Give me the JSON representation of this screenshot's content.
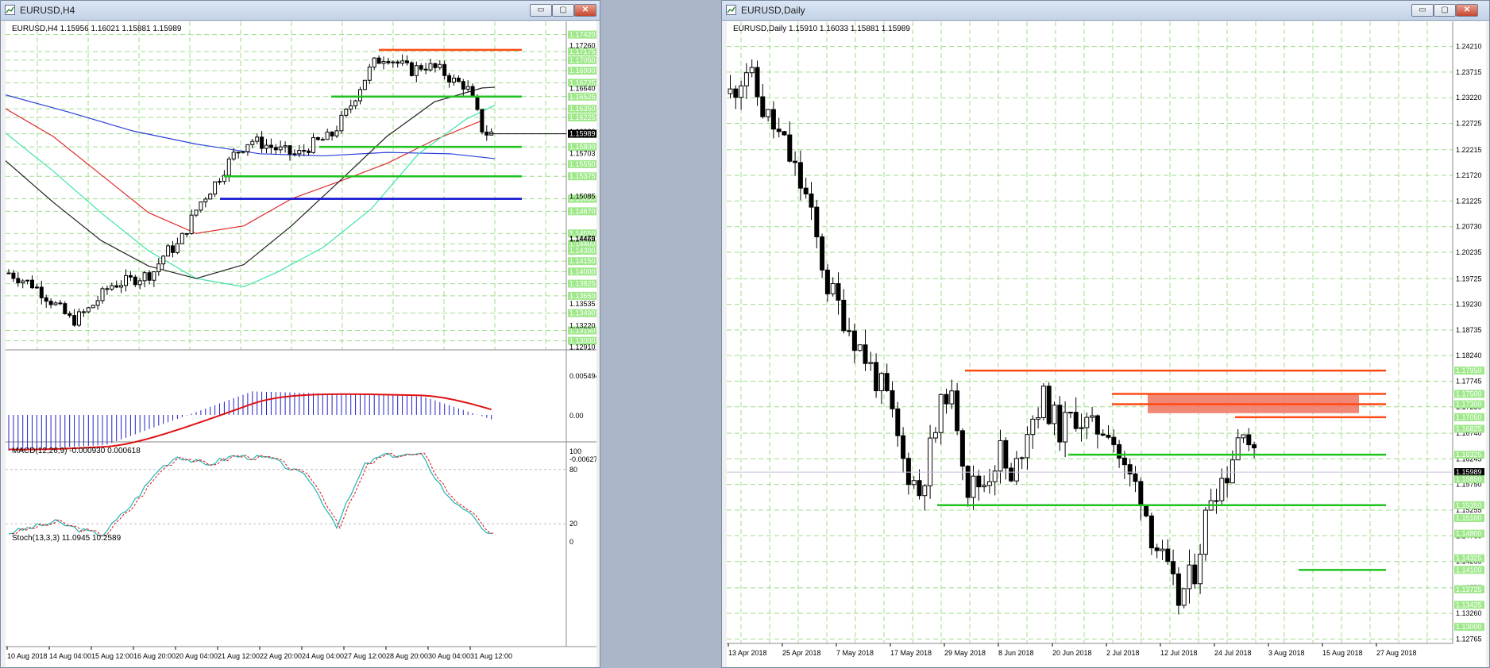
{
  "left_window": {
    "title": "EURUSD,H4",
    "controls": {
      "minimize": "▭",
      "maximize": "▢",
      "close": "✕"
    },
    "info": "EURUSD,H4  1.15956 1.16021 1.15881 1.15989",
    "price_labels": [
      "1.17260",
      "1.16640",
      "1.16020",
      "1.15703",
      "1.15085",
      "1.14479",
      "1.14465",
      "1.13535",
      "1.13220",
      "1.12910"
    ],
    "hline_tags": [
      "1.17420",
      "1.17175",
      "1.17050",
      "1.16900",
      "1.16725",
      "1.16525",
      "1.16350",
      "1.16225",
      "1.15989",
      "1.15800",
      "1.15550",
      "1.15375",
      "1.15050",
      "1.14870",
      "1.14550",
      "1.14400",
      "1.14300",
      "1.14150",
      "1.14000",
      "1.13825",
      "1.13650",
      "1.13400",
      "1.13150",
      "1.13000"
    ],
    "current_price": "1.15989",
    "macd_label": "MACD(12,26,9) -0.000930 0.000618",
    "macd_scale": [
      "0.005494",
      "0.00",
      "-0.006273"
    ],
    "stoch_label": "Stoch(13,3,3) 11.0945 10.2589",
    "stoch_scale": [
      "100",
      "80",
      "20",
      "0"
    ],
    "time_labels": [
      "10 Aug 2018",
      "14 Aug 04:00",
      "15 Aug 12:00",
      "16 Aug 20:00",
      "20 Aug 04:00",
      "21 Aug 12:00",
      "22 Aug 20:00",
      "24 Aug 04:00",
      "27 Aug 12:00",
      "28 Aug 20:00",
      "30 Aug 04:00",
      "31 Aug 12:00"
    ]
  },
  "right_window": {
    "title": "EURUSD,Daily",
    "controls": {
      "minimize": "▭",
      "maximize": "▢",
      "close": "✕"
    },
    "info": "EURUSD,Daily  1.15910 1.16033 1.15881 1.15989",
    "price_labels": [
      "1.24210",
      "1.23715",
      "1.23220",
      "1.22725",
      "1.22215",
      "1.21720",
      "1.21225",
      "1.20730",
      "1.20235",
      "1.19725",
      "1.19230",
      "1.18735",
      "1.18240",
      "1.17745",
      "1.17250",
      "1.16740",
      "1.16245",
      "1.15750",
      "1.15255",
      "1.14760",
      "1.14265",
      "1.13755",
      "1.13260",
      "1.12765"
    ],
    "hline_tags": [
      "1.17950",
      "1.17500",
      "1.17300",
      "1.17050",
      "1.16825",
      "1.16325",
      "1.15989",
      "1.15850",
      "1.15350",
      "1.15100",
      "1.14800",
      "1.14325",
      "1.14100",
      "1.13725",
      "1.13425",
      "1.13000"
    ],
    "current_price": "1.15989",
    "time_labels": [
      "13 Apr 2018",
      "25 Apr 2018",
      "7 May 2018",
      "17 May 2018",
      "29 May 2018",
      "8 Jun 2018",
      "20 Jun 2018",
      "2 Jul 2018",
      "12 Jul 2018",
      "24 Jul 2018",
      "3 Aug 2018",
      "15 Aug 2018",
      "27 Aug 2018"
    ]
  },
  "colors": {
    "resistance": "#ff4a12",
    "support": "#1fc21f",
    "key_level": "#0c0cd0",
    "ma_fast": "#3fe4a8",
    "ma_mid": "#222222",
    "ma_slow": "#e02b2b",
    "ma_long": "#2a3fd8",
    "macd_hist": "#2020c8",
    "macd_signal": "#e01010",
    "stoch_main": "#1fb4b4",
    "stoch_signal": "#e01010",
    "grid": "#9fdc8c",
    "tag_bg": "#9ee88a",
    "zone": "#f07a66"
  }
}
